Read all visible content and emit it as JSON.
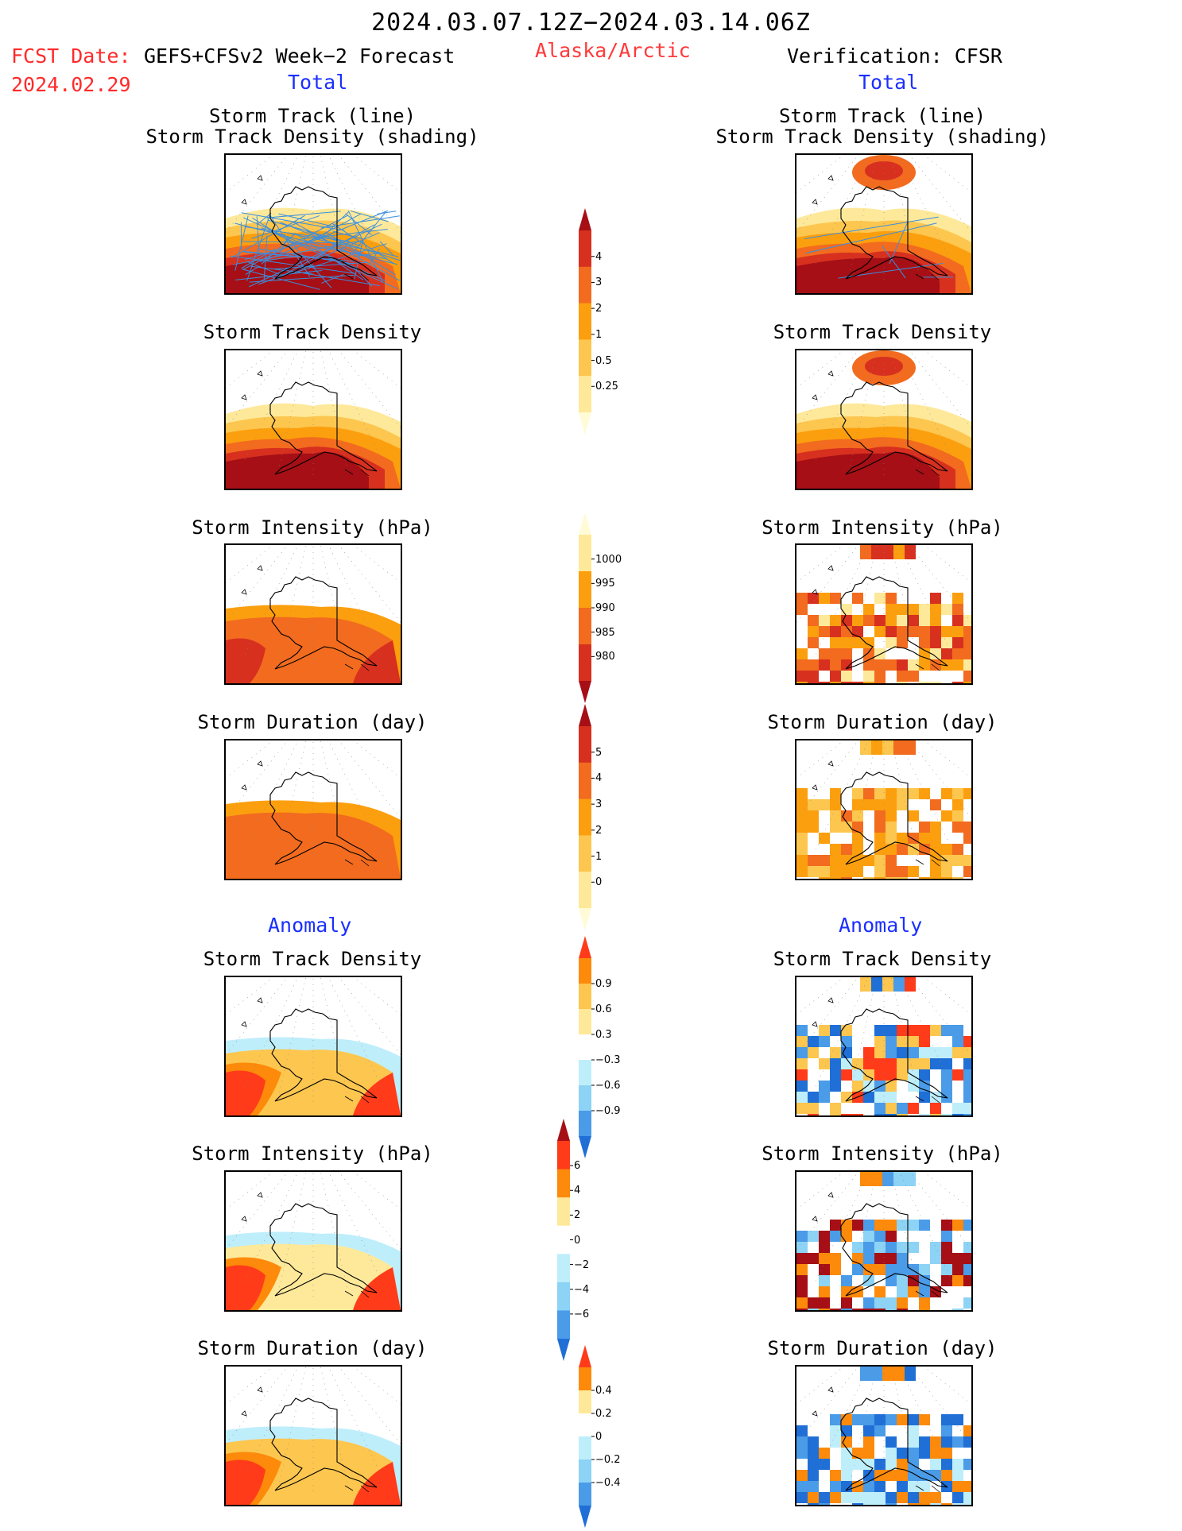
{
  "header": {
    "title": "2024.03.07.12Z−2024.03.14.06Z",
    "fcst_label": "FCST Date:",
    "fcst_value": "GEFS+CFSv2 Week−2 Forecast",
    "fcst_date": "2024.02.29",
    "region": "Alaska/Arctic",
    "verification": "Verification: CFSR"
  },
  "sections": {
    "total": "Total",
    "anomaly": "Anomaly"
  },
  "panel_titles": {
    "track_line": "Storm Track (line)",
    "track_density_shading": "Storm Track Density (shading)",
    "track_density": "Storm Track Density",
    "intensity": "Storm Intensity (hPa)",
    "duration": "Storm Duration (day)"
  },
  "colorbars": [
    {
      "name": "total-track-density",
      "ticks": [
        "4",
        "3",
        "2",
        "1",
        "0.5",
        "0.25"
      ],
      "colors": [
        "#a50f15",
        "#d7301f",
        "#f26b1f",
        "#fc9f0e",
        "#fdc64f",
        "#fee99a",
        "#fffbd6"
      ]
    },
    {
      "name": "total-intensity",
      "ticks": [
        "1000",
        "995",
        "990",
        "985",
        "980"
      ],
      "colors": [
        "#fffbd6",
        "#fee99a",
        "#fc9f0e",
        "#f26b1f",
        "#d7301f",
        "#a50f15"
      ]
    },
    {
      "name": "total-duration",
      "ticks": [
        "5",
        "4",
        "3",
        "2",
        "1",
        "0"
      ],
      "colors": [
        "#a50f15",
        "#d7301f",
        "#f26b1f",
        "#fc9f0e",
        "#fdc64f",
        "#fee99a",
        "#fffbd6"
      ]
    },
    {
      "name": "anom-track-density",
      "ticks": [
        "0.9",
        "0.6",
        "0.3",
        "−0.3",
        "−0.6",
        "−0.9"
      ],
      "colors": [
        "#ff3b1a",
        "#fd8a0a",
        "#fdc64f",
        "#fee99a",
        "#ffffff",
        "#bfeefb",
        "#8cd3f5",
        "#4a9be8",
        "#1f6fd6"
      ]
    },
    {
      "name": "anom-intensity",
      "ticks": [
        "6",
        "4",
        "2",
        "0",
        "−2",
        "−4",
        "−6"
      ],
      "colors": [
        "#a50f15",
        "#ff3b1a",
        "#fd8a0a",
        "#fee99a",
        "#ffffff",
        "#bfeefb",
        "#8cd3f5",
        "#4a9be8",
        "#1f6fd6"
      ]
    },
    {
      "name": "anom-duration",
      "ticks": [
        "0.4",
        "0.2",
        "0",
        "−0.2",
        "−0.4"
      ],
      "colors": [
        "#ff3b1a",
        "#fd8a0a",
        "#fee99a",
        "#ffffff",
        "#bfeefb",
        "#8cd3f5",
        "#4a9be8",
        "#1f6fd6"
      ]
    }
  ],
  "colors": {
    "section_blue": "#1a2fff",
    "header_red": "#ff2a2a",
    "track_line": "#3a8fe0"
  }
}
